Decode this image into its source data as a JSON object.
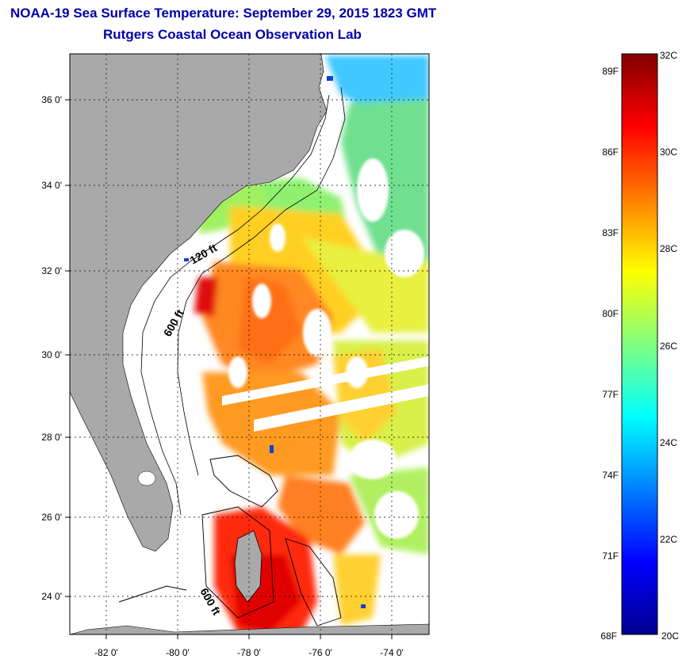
{
  "title": {
    "line1": "NOAA-19 Sea Surface Temperature:  September 29, 2015 1823 GMT",
    "line2": "Rutgers Coastal Ocean Observation Lab"
  },
  "map": {
    "lon_ticks": [
      "-82 0'",
      "-80 0'",
      "-78 0'",
      "-76 0'",
      "-74 0'"
    ],
    "lat_ticks": [
      "36 0'",
      "34 0'",
      "32 0'",
      "30 0'",
      "28 0'",
      "26 0'",
      "24 0'"
    ],
    "contour_labels": [
      "120 ft",
      "600 ft",
      "600 ft"
    ],
    "colors": {
      "land": "#a9a9a9",
      "ocean_missing": "#ffffff"
    }
  },
  "colorbar": {
    "celsius_labels": [
      "32C",
      "30C",
      "28C",
      "26C",
      "24C",
      "22C",
      "20C"
    ],
    "fahrenheit_labels": [
      "89F",
      "86F",
      "83F",
      "80F",
      "77F",
      "74F",
      "71F",
      "68F"
    ],
    "range_c": [
      20,
      32
    ],
    "colormap": "jet"
  }
}
